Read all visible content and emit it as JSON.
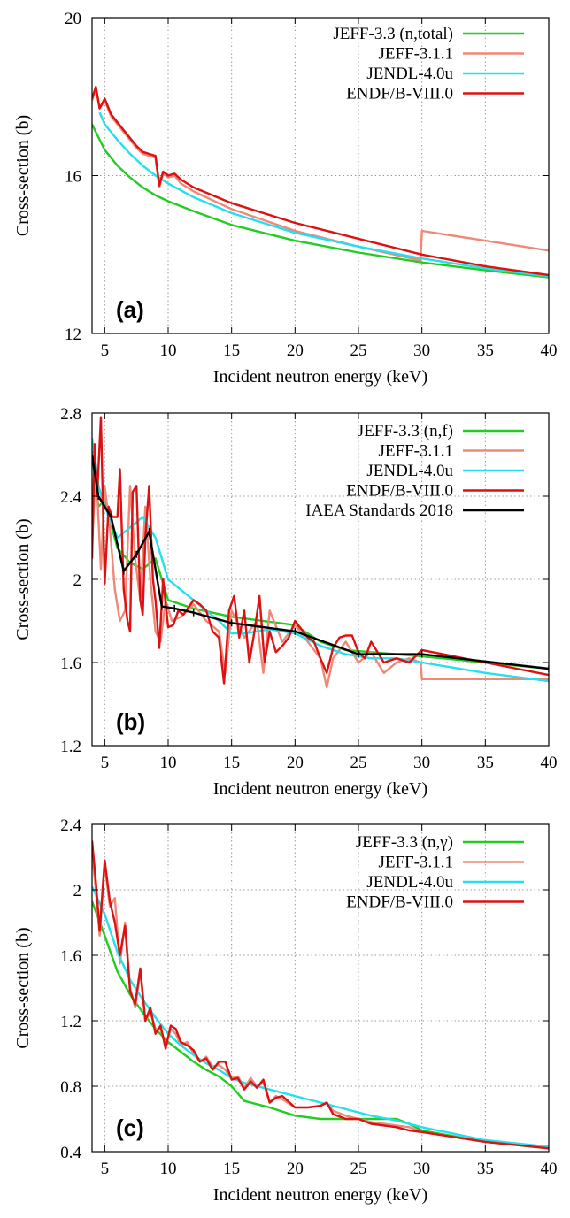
{
  "chart_data": [
    {
      "type": "line",
      "panel_label": "(a)",
      "xlabel": "Incident neutron energy (keV)",
      "ylabel": "Cross-section (b)",
      "xlim": [
        4,
        40
      ],
      "ylim": [
        12,
        20
      ],
      "xticks": [
        5,
        10,
        15,
        20,
        25,
        30,
        35,
        40
      ],
      "yticks": [
        12,
        16,
        20
      ],
      "grid": true,
      "legend_position": "top-right",
      "series": [
        {
          "name": "JEFF-3.3 (n,total)",
          "color": "#22cc22",
          "x": [
            4,
            5,
            6,
            7,
            8,
            9,
            10,
            12,
            15,
            20,
            25,
            30,
            35,
            40
          ],
          "y": [
            17.3,
            16.65,
            16.25,
            15.95,
            15.7,
            15.5,
            15.35,
            15.1,
            14.75,
            14.35,
            14.05,
            13.8,
            13.6,
            13.42
          ]
        },
        {
          "name": "JEFF-3.1.1",
          "color": "#f08878",
          "x": [
            4,
            4.3,
            4.6,
            5,
            5.5,
            6,
            6.5,
            7,
            7.5,
            8,
            8.5,
            9,
            9.3,
            9.6,
            10,
            10.5,
            11,
            12,
            15,
            20,
            25,
            29.9,
            30,
            35,
            40
          ],
          "y": [
            17.9,
            18.2,
            17.7,
            17.9,
            17.5,
            17.3,
            17.1,
            16.9,
            16.7,
            16.55,
            16.5,
            16.45,
            15.7,
            16.05,
            15.95,
            16.0,
            15.8,
            15.6,
            15.15,
            14.6,
            14.2,
            13.85,
            14.6,
            14.35,
            14.1
          ]
        },
        {
          "name": "JENDL-4.0u",
          "color": "#22e0ee",
          "x": [
            4.6,
            5,
            6,
            7,
            8,
            9,
            10,
            12,
            15,
            20,
            25,
            30,
            35,
            40
          ],
          "y": [
            17.6,
            17.3,
            16.9,
            16.55,
            16.25,
            16.0,
            15.8,
            15.45,
            15.05,
            14.55,
            14.2,
            13.9,
            13.65,
            13.45
          ]
        },
        {
          "name": "ENDF/B-VIII.0",
          "color": "#dd1111",
          "x": [
            4,
            4.3,
            4.6,
            5,
            5.5,
            6,
            6.5,
            7,
            7.5,
            8,
            8.5,
            9,
            9.3,
            9.6,
            10,
            10.5,
            11,
            12,
            15,
            20,
            25,
            30,
            35,
            40
          ],
          "y": [
            17.95,
            18.25,
            17.7,
            17.95,
            17.55,
            17.35,
            17.15,
            16.95,
            16.75,
            16.6,
            16.55,
            16.5,
            15.75,
            16.1,
            16.0,
            16.05,
            15.9,
            15.7,
            15.3,
            14.8,
            14.4,
            14.0,
            13.7,
            13.48
          ]
        }
      ]
    },
    {
      "type": "line",
      "panel_label": "(b)",
      "xlabel": "Incident neutron energy (keV)",
      "ylabel": "Cross-section (b)",
      "xlim": [
        4,
        40
      ],
      "ylim": [
        1.2,
        2.8
      ],
      "xticks": [
        5,
        10,
        15,
        20,
        25,
        30,
        35,
        40
      ],
      "yticks": [
        1.2,
        1.6,
        2,
        2.4,
        2.8
      ],
      "ytick_labels": [
        "1.2",
        "1.6",
        "2",
        "2.4",
        "2.8"
      ],
      "grid": true,
      "legend_position": "top-right",
      "series": [
        {
          "name": "JEFF-3.3 (n,f)",
          "color": "#22cc22",
          "x": [
            4,
            4.5,
            5,
            6,
            7,
            8,
            9,
            10,
            12,
            15,
            20,
            22,
            24,
            26,
            30,
            35,
            40
          ],
          "y": [
            2.6,
            2.35,
            2.38,
            2.15,
            2.08,
            2.05,
            2.1,
            1.9,
            1.86,
            1.82,
            1.78,
            1.7,
            1.66,
            1.65,
            1.63,
            1.6,
            1.57
          ]
        },
        {
          "name": "JEFF-3.1.1",
          "color": "#f08878",
          "x": [
            4,
            4.3,
            4.7,
            5,
            5.4,
            5.8,
            6.2,
            6.6,
            7,
            7.4,
            7.8,
            8.2,
            8.6,
            9,
            9.4,
            9.8,
            10.3,
            11,
            12,
            13,
            14,
            14.5,
            15,
            16,
            17,
            17.5,
            18,
            19,
            20,
            21,
            22,
            22.5,
            23,
            24,
            25,
            26,
            27,
            28,
            29,
            29.9,
            30,
            35,
            40
          ],
          "y": [
            2.15,
            2.55,
            2.05,
            2.45,
            2.25,
            1.95,
            1.8,
            1.85,
            2.45,
            2.1,
            1.9,
            2.35,
            2.0,
            1.75,
            1.7,
            1.9,
            1.8,
            1.82,
            1.88,
            1.8,
            1.75,
            1.55,
            1.85,
            1.72,
            1.8,
            1.55,
            1.85,
            1.7,
            1.78,
            1.7,
            1.62,
            1.48,
            1.62,
            1.7,
            1.6,
            1.65,
            1.55,
            1.6,
            1.62,
            1.6,
            1.52,
            1.52,
            1.52
          ]
        },
        {
          "name": "JENDL-4.0u",
          "color": "#22e0ee",
          "x": [
            4,
            4.5,
            5,
            6,
            7,
            8,
            9,
            10,
            11,
            12,
            13,
            14,
            15,
            16,
            18,
            20,
            22,
            24,
            26,
            28,
            30,
            35,
            40
          ],
          "y": [
            2.68,
            2.45,
            2.35,
            2.2,
            2.25,
            2.3,
            2.2,
            2.0,
            1.95,
            1.9,
            1.85,
            1.8,
            1.74,
            1.74,
            1.76,
            1.74,
            1.68,
            1.64,
            1.62,
            1.62,
            1.6,
            1.55,
            1.51
          ]
        },
        {
          "name": "ENDF/B-VIII.0",
          "color": "#dd1111",
          "x": [
            4,
            4.2,
            4.4,
            4.7,
            5,
            5.3,
            5.6,
            6,
            6.2,
            6.5,
            6.8,
            7,
            7.2,
            7.5,
            7.8,
            8,
            8.2,
            8.5,
            8.8,
            9,
            9.3,
            9.6,
            10,
            10.4,
            10.8,
            11.2,
            12,
            12.5,
            13,
            13.5,
            14,
            14.4,
            14.8,
            15.2,
            15.6,
            16,
            16.4,
            16.8,
            17.2,
            17.6,
            18,
            18.5,
            19,
            19.5,
            20,
            20.5,
            21,
            21.5,
            22,
            22.5,
            23,
            23.5,
            24,
            24.5,
            25,
            25.5,
            26,
            27,
            28,
            29,
            30,
            35,
            40
          ],
          "y": [
            2.1,
            2.65,
            2.4,
            2.78,
            1.98,
            2.35,
            2.3,
            2.3,
            2.53,
            1.95,
            1.8,
            1.75,
            2.42,
            2.45,
            1.9,
            1.83,
            2.2,
            2.45,
            2.0,
            1.9,
            1.67,
            2.0,
            1.77,
            1.78,
            1.85,
            1.83,
            1.9,
            1.88,
            1.85,
            1.75,
            1.72,
            1.5,
            1.85,
            1.92,
            1.72,
            1.85,
            1.6,
            1.75,
            1.92,
            1.6,
            1.75,
            1.65,
            1.68,
            1.72,
            1.8,
            1.76,
            1.72,
            1.7,
            1.62,
            1.55,
            1.67,
            1.72,
            1.73,
            1.73,
            1.65,
            1.62,
            1.7,
            1.6,
            1.62,
            1.6,
            1.66,
            1.6,
            1.54
          ]
        },
        {
          "name": "IAEA Standards 2018",
          "color": "#000000",
          "x": [
            4,
            4.5,
            5.5,
            6.5,
            7.5,
            8.5,
            9.5,
            10.5,
            12,
            15,
            20,
            25,
            30,
            40
          ],
          "y": [
            2.6,
            2.4,
            2.3,
            2.04,
            2.12,
            2.23,
            1.87,
            1.86,
            1.84,
            1.79,
            1.75,
            1.64,
            1.64,
            1.57
          ]
        }
      ]
    },
    {
      "type": "line",
      "panel_label": "(c)",
      "xlabel": "Incident neutron energy (keV)",
      "ylabel": "Cross-section (b)",
      "xlim": [
        4,
        40
      ],
      "ylim": [
        0.4,
        2.4
      ],
      "xticks": [
        5,
        10,
        15,
        20,
        25,
        30,
        35,
        40
      ],
      "yticks": [
        0.4,
        0.8,
        1.2,
        1.6,
        2,
        2.4
      ],
      "ytick_labels": [
        "0.4",
        "0.8",
        "1.2",
        "1.6",
        "2",
        "2.4"
      ],
      "grid": true,
      "legend_position": "top-right",
      "series": [
        {
          "name": "JEFF-3.3 (n,γ)",
          "color": "#22cc22",
          "x": [
            4,
            5,
            6,
            7,
            8,
            9,
            10,
            11,
            12,
            13,
            14,
            15,
            16,
            18,
            20,
            22,
            24,
            26,
            27.5,
            28,
            29,
            30,
            35,
            40
          ],
          "y": [
            1.93,
            1.72,
            1.5,
            1.36,
            1.25,
            1.15,
            1.07,
            1.01,
            0.95,
            0.9,
            0.86,
            0.8,
            0.71,
            0.67,
            0.62,
            0.6,
            0.6,
            0.6,
            0.6,
            0.6,
            0.57,
            0.53,
            0.46,
            0.42
          ]
        },
        {
          "name": "JEFF-3.1.1",
          "color": "#f08878",
          "x": [
            4,
            4.3,
            4.6,
            5,
            5.4,
            5.8,
            6.2,
            6.6,
            7,
            7.4,
            7.8,
            8.2,
            8.6,
            9,
            9.4,
            9.8,
            10.2,
            10.6,
            11,
            11.5,
            12,
            12.5,
            13,
            13.5,
            14,
            14.5,
            15,
            15.5,
            16,
            16.5,
            17,
            17.5,
            18,
            18.5,
            19,
            20,
            21,
            22,
            22.5,
            23,
            24,
            25,
            26,
            27,
            28,
            29,
            30,
            35,
            40
          ],
          "y": [
            2.22,
            2.0,
            1.72,
            2.15,
            1.9,
            1.95,
            1.55,
            1.8,
            1.4,
            1.28,
            1.5,
            1.2,
            1.25,
            1.15,
            1.15,
            1.05,
            1.15,
            1.12,
            1.05,
            1.07,
            1.0,
            0.95,
            0.98,
            0.92,
            0.93,
            0.9,
            0.85,
            0.86,
            0.79,
            0.85,
            0.8,
            0.82,
            0.7,
            0.74,
            0.72,
            0.67,
            0.67,
            0.68,
            0.7,
            0.65,
            0.62,
            0.6,
            0.58,
            0.57,
            0.56,
            0.55,
            0.52,
            0.46,
            0.43
          ]
        },
        {
          "name": "JENDL-4.0u",
          "color": "#22e0ee",
          "x": [
            4,
            5,
            6,
            7,
            8,
            9,
            10,
            11,
            12,
            13,
            14,
            15,
            16,
            18,
            20,
            22,
            24,
            26,
            28,
            30,
            35,
            40
          ],
          "y": [
            2.02,
            1.85,
            1.62,
            1.45,
            1.33,
            1.22,
            1.12,
            1.05,
            0.99,
            0.94,
            0.9,
            0.85,
            0.82,
            0.78,
            0.74,
            0.7,
            0.66,
            0.62,
            0.59,
            0.55,
            0.47,
            0.43
          ]
        },
        {
          "name": "ENDF/B-VIII.0",
          "color": "#dd1111",
          "x": [
            4,
            4.3,
            4.6,
            5,
            5.4,
            5.8,
            6.2,
            6.6,
            7,
            7.4,
            7.8,
            8.2,
            8.6,
            9,
            9.4,
            9.8,
            10.2,
            10.6,
            11,
            11.5,
            12,
            12.5,
            13,
            13.5,
            14,
            14.5,
            15,
            15.5,
            16,
            16.5,
            17,
            17.5,
            18,
            18.5,
            19,
            20,
            21,
            22,
            22.5,
            23,
            24,
            25,
            26,
            27,
            28,
            29,
            30,
            35,
            40
          ],
          "y": [
            2.3,
            2.05,
            1.75,
            2.18,
            1.93,
            1.8,
            1.6,
            1.78,
            1.38,
            1.3,
            1.52,
            1.2,
            1.28,
            1.12,
            1.17,
            1.03,
            1.17,
            1.15,
            1.07,
            1.05,
            1.02,
            0.95,
            0.97,
            0.9,
            0.95,
            0.95,
            0.84,
            0.85,
            0.78,
            0.83,
            0.79,
            0.84,
            0.7,
            0.73,
            0.74,
            0.67,
            0.67,
            0.68,
            0.7,
            0.63,
            0.6,
            0.6,
            0.57,
            0.56,
            0.55,
            0.53,
            0.52,
            0.46,
            0.42
          ]
        }
      ]
    }
  ]
}
